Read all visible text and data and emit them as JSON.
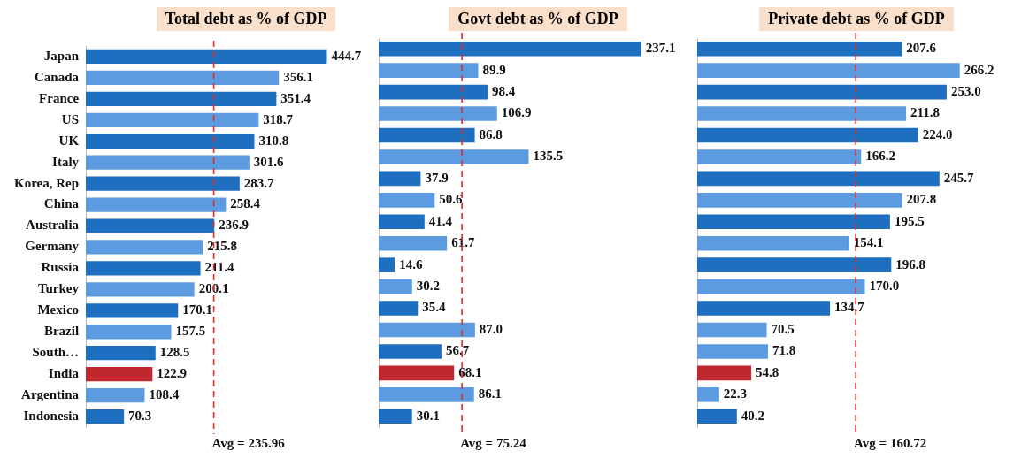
{
  "chart_data": [
    {
      "type": "bar",
      "orientation": "horizontal",
      "title": "Total debt as % of GDP",
      "categories": [
        "Japan",
        "Canada",
        "France",
        "US",
        "UK",
        "Italy",
        "Korea, Rep",
        "China",
        "Australia",
        "Germany",
        "Russia",
        "Turkey",
        "Mexico",
        "Brazil",
        "South…",
        "India",
        "Argentina",
        "Indonesia"
      ],
      "values": [
        444.7,
        356.1,
        351.4,
        318.7,
        310.8,
        301.6,
        283.7,
        258.4,
        236.9,
        215.8,
        211.4,
        200.1,
        170.1,
        157.5,
        128.5,
        122.9,
        108.4,
        70.3
      ],
      "value_labels": [
        "444.7",
        "356.1",
        "351.4",
        "318.7",
        "310.8",
        "301.6",
        "283.7",
        "258.4",
        "236.9",
        "215.8",
        "211.4",
        "200.1",
        "170.1",
        "157.5",
        "128.5",
        "122.9",
        "108.4",
        "70.3"
      ],
      "colors": [
        "#1f6fc0",
        "#5d9be0",
        "#1f6fc0",
        "#5d9be0",
        "#1f6fc0",
        "#5d9be0",
        "#1f6fc0",
        "#5d9be0",
        "#1f6fc0",
        "#5d9be0",
        "#1f6fc0",
        "#5d9be0",
        "#1f6fc0",
        "#5d9be0",
        "#1f6fc0",
        "#c0282d",
        "#5d9be0",
        "#1f6fc0"
      ],
      "tick_labels": "y",
      "grid": false,
      "legend": false,
      "ref_lines": [
        {
          "axis": "x",
          "value": 235.96,
          "label": "Avg = 235.96",
          "color": "#d9302b",
          "line_style": "dashed"
        }
      ]
    },
    {
      "type": "bar",
      "orientation": "horizontal",
      "title": "Govt debt as % of GDP",
      "categories": [
        null,
        null,
        null,
        null,
        null,
        null,
        null,
        null,
        null,
        null,
        null,
        null,
        null,
        null,
        null,
        null,
        null,
        null
      ],
      "values": [
        237.1,
        89.9,
        98.4,
        106.9,
        86.8,
        135.5,
        37.9,
        50.6,
        41.4,
        61.7,
        14.6,
        30.2,
        35.4,
        87.0,
        56.7,
        68.1,
        86.1,
        30.1
      ],
      "value_labels": [
        "237.1",
        "89.9",
        "98.4",
        "106.9",
        "86.8",
        "135.5",
        "37.9",
        "50.6",
        "41.4",
        "61.7",
        "14.6",
        "30.2",
        "35.4",
        "87.0",
        "56.7",
        "68.1",
        "86.1",
        "30.1"
      ],
      "colors": [
        "#1f6fc0",
        "#5d9be0",
        "#1f6fc0",
        "#5d9be0",
        "#1f6fc0",
        "#5d9be0",
        "#1f6fc0",
        "#5d9be0",
        "#1f6fc0",
        "#5d9be0",
        "#1f6fc0",
        "#5d9be0",
        "#1f6fc0",
        "#5d9be0",
        "#1f6fc0",
        "#c0282d",
        "#5d9be0",
        "#1f6fc0"
      ],
      "tick_labels": false,
      "grid": false,
      "legend": false,
      "ref_lines": [
        {
          "axis": "x",
          "value": 75.24,
          "label": "Avg = 75.24",
          "color": "#d9302b",
          "line_style": "dashed"
        }
      ]
    },
    {
      "type": "bar",
      "orientation": "horizontal",
      "title": "Private debt as % of GDP",
      "categories": [
        null,
        null,
        null,
        null,
        null,
        null,
        null,
        null,
        null,
        null,
        null,
        null,
        null,
        null,
        null,
        null,
        null,
        null
      ],
      "values": [
        207.6,
        266.2,
        253.0,
        211.8,
        224.0,
        166.2,
        245.7,
        207.8,
        195.5,
        154.1,
        196.8,
        170.0,
        134.7,
        70.5,
        71.8,
        54.8,
        22.3,
        40.2
      ],
      "value_labels": [
        "207.6",
        "266.2",
        "253.0",
        "211.8",
        "224.0",
        "166.2",
        "245.7",
        "207.8",
        "195.5",
        "154.1",
        "196.8",
        "170.0",
        "134.7",
        "70.5",
        "71.8",
        "54.8",
        "22.3",
        "40.2"
      ],
      "colors": [
        "#1f6fc0",
        "#5d9be0",
        "#1f6fc0",
        "#5d9be0",
        "#1f6fc0",
        "#5d9be0",
        "#1f6fc0",
        "#5d9be0",
        "#1f6fc0",
        "#5d9be0",
        "#1f6fc0",
        "#5d9be0",
        "#1f6fc0",
        "#5d9be0",
        "#5d9be0",
        "#c0282d",
        "#5d9be0",
        "#1f6fc0"
      ],
      "tick_labels": false,
      "grid": false,
      "legend": false,
      "ref_lines": [
        {
          "axis": "x",
          "value": 160.72,
          "label": "Avg = 160.72",
          "color": "#d9302b",
          "line_style": "dashed"
        }
      ]
    }
  ]
}
